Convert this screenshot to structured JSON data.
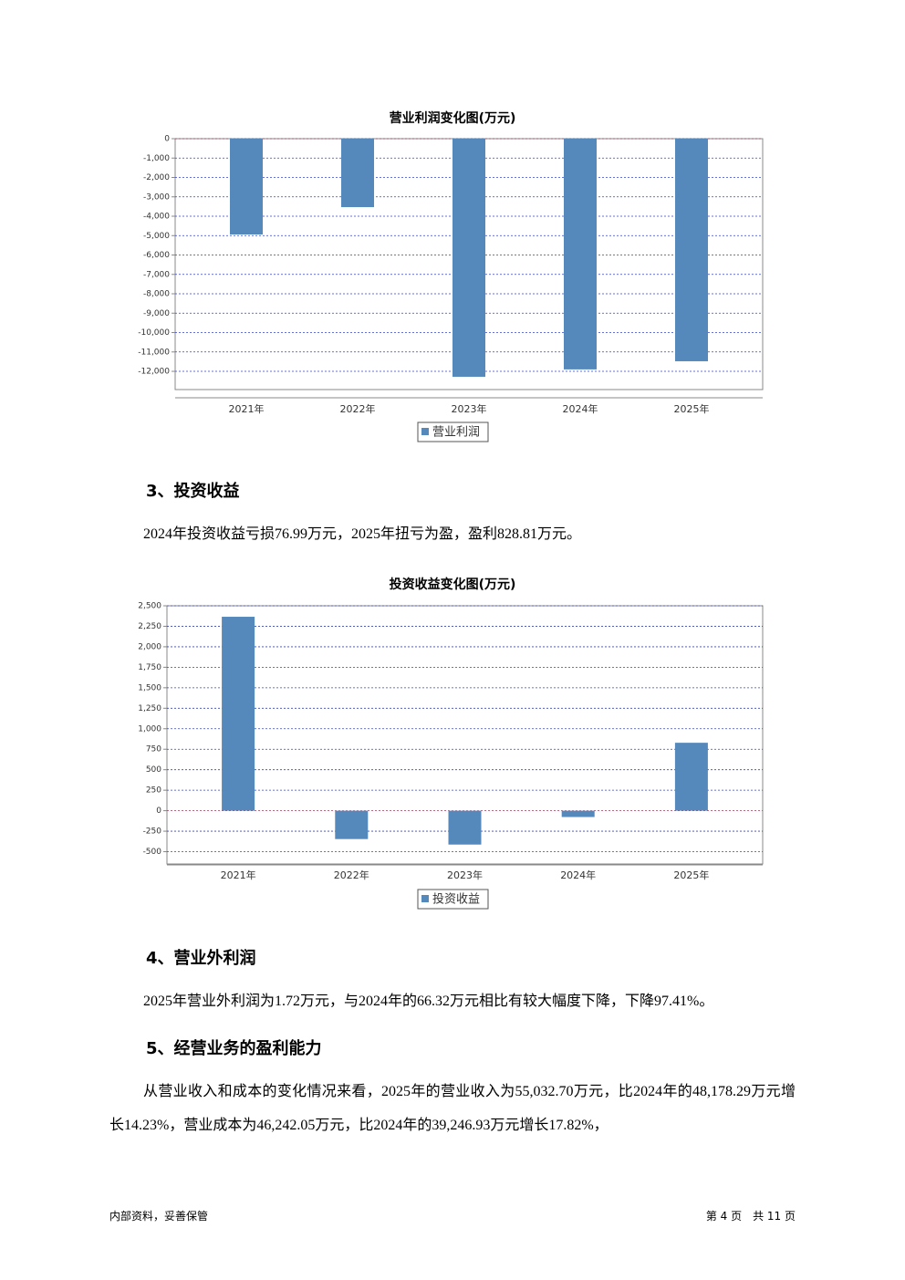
{
  "chart_data": [
    {
      "type": "bar",
      "title": "营业利润变化图(万元)",
      "categories": [
        "2021年",
        "2022年",
        "2023年",
        "2024年",
        "2025年"
      ],
      "series": [
        {
          "name": "营业利润",
          "color": "#5588bb",
          "values": [
            -4940,
            -3530,
            -12280,
            -11900,
            -11480
          ]
        }
      ],
      "ylim": [
        -12940,
        0
      ],
      "yticks": [
        0,
        {
          "value": -1000,
          "label": "-1,000"
        },
        {
          "value": -2000,
          "label": "-2,000"
        },
        {
          "value": -3000,
          "label": "-3,000"
        },
        {
          "value": -4000,
          "label": "-4,000"
        },
        {
          "value": -5000,
          "label": "-5,000"
        },
        {
          "value": -6000,
          "label": "-6,000"
        },
        {
          "value": -7000,
          "label": "-7,000"
        },
        {
          "value": -8000,
          "label": "-8,000"
        },
        {
          "value": -9000,
          "label": "-9,000"
        },
        {
          "value": -10000,
          "label": "-10,000"
        },
        {
          "value": -11000,
          "label": "-11,000"
        },
        {
          "value": -12000,
          "label": "-12,000"
        }
      ],
      "grid": true
    },
    {
      "type": "bar",
      "title": "投资收益变化图(万元)",
      "categories": [
        "2021年",
        "2022年",
        "2023年",
        "2024年",
        "2025年"
      ],
      "series": [
        {
          "name": "投资收益",
          "color": "#5588bb",
          "values": [
            2366,
            -346,
            -413,
            -76.99,
            828.81
          ]
        }
      ],
      "ylim": [
        -650,
        2500
      ],
      "yticks": [
        {
          "value": 2500,
          "label": "2,500"
        },
        {
          "value": 2250,
          "label": "2,250"
        },
        {
          "value": 2000,
          "label": "2,000"
        },
        {
          "value": 1750,
          "label": "1,750"
        },
        {
          "value": 1500,
          "label": "1,500"
        },
        {
          "value": 1250,
          "label": "1,250"
        },
        {
          "value": 1000,
          "label": "1,000"
        },
        750,
        500,
        250,
        0,
        -250,
        -500
      ],
      "grid": true
    }
  ],
  "sections": [
    {
      "heading": "3、投资收益",
      "paragraphs": [
        "2024年投资收益亏损76.99万元，2025年扭亏为盈，盈利828.81万元。"
      ]
    },
    {
      "heading": "4、营业外利润",
      "paragraphs": [
        "2025年营业外利润为1.72万元，与2024年的66.32万元相比有较大幅度下降，下降97.41%。"
      ]
    },
    {
      "heading": "5、经营业务的盈利能力",
      "paragraphs": [
        "从营业收入和成本的变化情况来看，2025年的营业收入为55,032.70万元，比2024年的48,178.29万元增长14.23%，营业成本为46,242.05万元，比2024年的39,246.93万元增长17.82%，"
      ]
    }
  ],
  "footer": {
    "left": "内部资料，妥善保管",
    "right": "第 4 页　共 11 页"
  }
}
